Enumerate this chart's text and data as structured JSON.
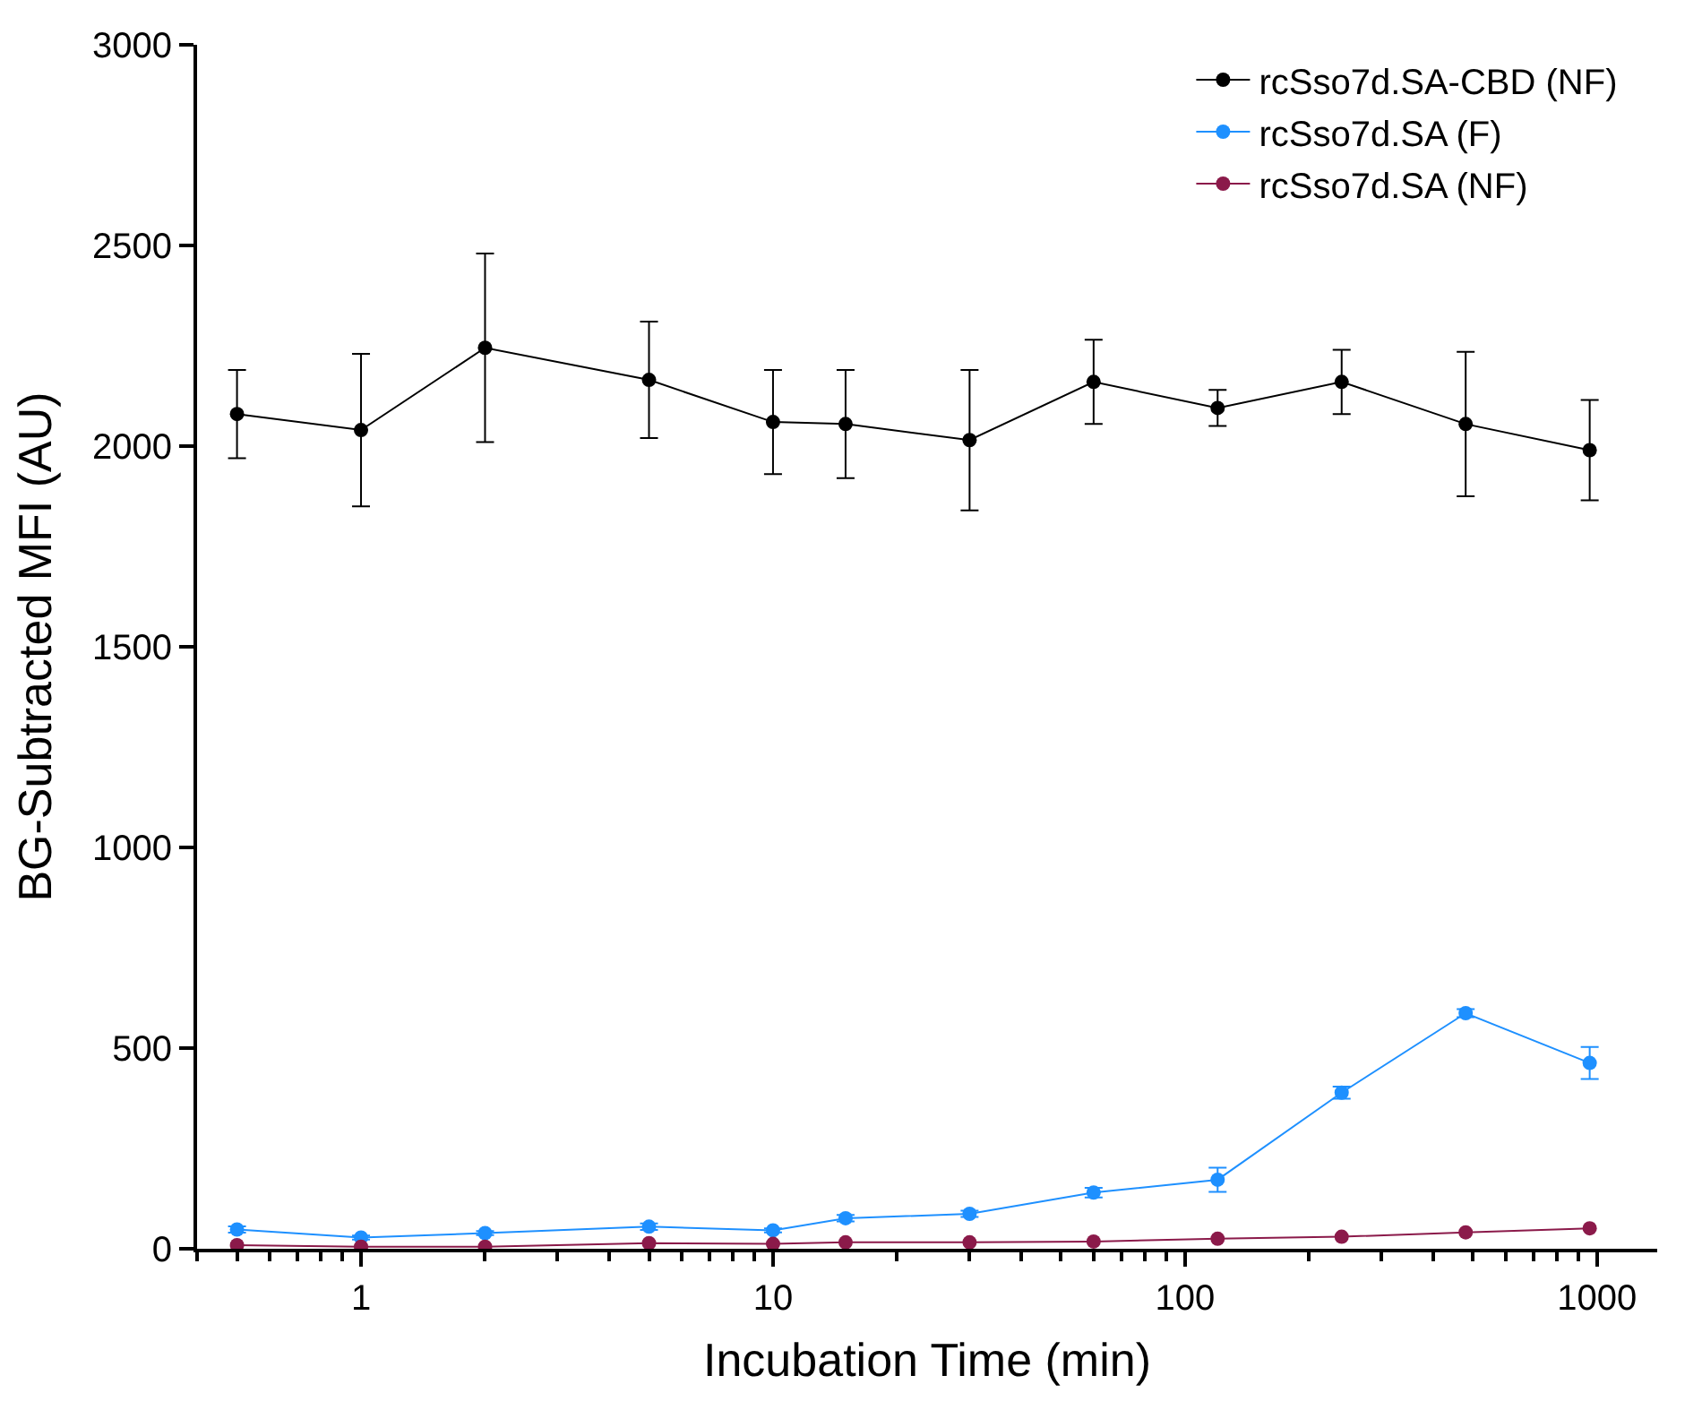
{
  "chart_data": {
    "type": "line",
    "xlabel": "Incubation Time (min)",
    "ylabel": "BG-Subtracted MFI (AU)",
    "x": [
      0.5,
      1,
      2,
      5,
      10,
      15,
      30,
      60,
      120,
      240,
      480,
      960
    ],
    "series": [
      {
        "name": "rcSso7d.SA-CBD (NF)",
        "color": "#000000",
        "values": [
          2080,
          2040,
          2245,
          2165,
          2060,
          2055,
          2015,
          2160,
          2095,
          2160,
          2055,
          1990
        ],
        "errors": [
          110,
          190,
          235,
          145,
          130,
          135,
          175,
          105,
          45,
          80,
          180,
          125
        ]
      },
      {
        "name": "rcSso7d.SA (F)",
        "color": "#1e90ff",
        "values": [
          48,
          28,
          39,
          55,
          46,
          76,
          87,
          140,
          172,
          389,
          587,
          463
        ],
        "errors": [
          8,
          5,
          5,
          8,
          5,
          8,
          8,
          12,
          30,
          15,
          10,
          40
        ]
      },
      {
        "name": "rcSso7d.SA (NF)",
        "color": "#8b1a4a",
        "values": [
          9,
          5,
          5,
          14,
          12,
          16,
          16,
          18,
          25,
          30,
          41,
          51
        ]
      }
    ],
    "log": "x",
    "xlim": [
      0.4,
      1400
    ],
    "xticks": [
      1,
      10,
      100,
      1000
    ],
    "ylim": [
      0,
      3000
    ],
    "yticks": [
      0,
      500,
      1000,
      1500,
      2000,
      2500,
      3000
    ],
    "legend": "top right",
    "marker": "circle",
    "line_style": "solid"
  }
}
